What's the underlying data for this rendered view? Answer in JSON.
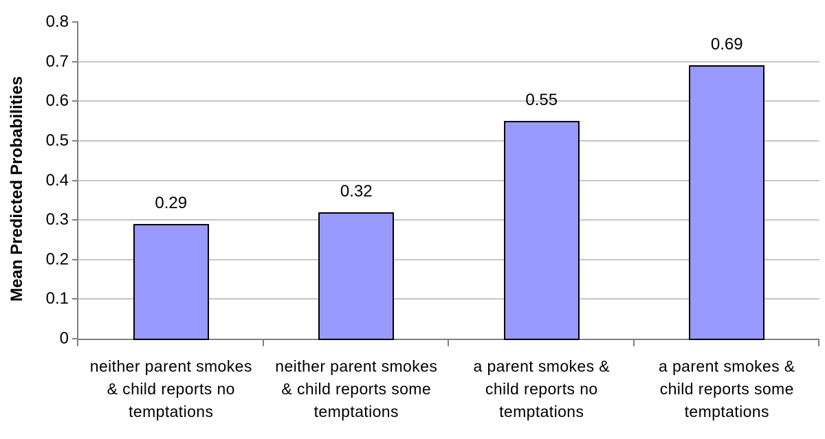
{
  "chart_data": {
    "type": "bar",
    "title": "",
    "xlabel": "",
    "ylabel": "Mean Predicted Probabilities",
    "categories": [
      "neither parent smokes\n& child reports no\ntemptations",
      "neither parent smokes\n& child reports some\ntemptations",
      "a parent smokes &\nchild reports no\ntemptations",
      "a parent smokes &\nchild reports some\ntemptations"
    ],
    "values": [
      0.29,
      0.32,
      0.55,
      0.69
    ],
    "value_labels": [
      "0.29",
      "0.32",
      "0.55",
      "0.69"
    ],
    "ylim": [
      0,
      0.8
    ],
    "ytick_step": 0.1,
    "ytick_labels": [
      "0",
      "0.1",
      "0.2",
      "0.3",
      "0.4",
      "0.5",
      "0.6",
      "0.7",
      "0.8"
    ],
    "grid": "horizontal",
    "legend": "none",
    "colors": {
      "bar_fill": "#9999FF",
      "bar_border": "#000000",
      "gridline": "#C6C6C6",
      "axis": "#808080",
      "text": "#000000",
      "background": "#FFFFFF"
    }
  }
}
